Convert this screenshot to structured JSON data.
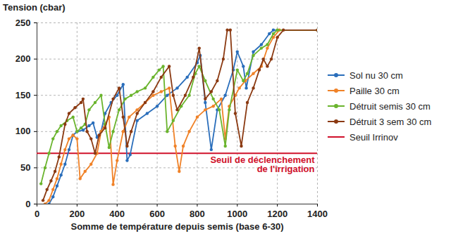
{
  "chart_data": {
    "type": "line",
    "x_label": "Somme de température depuis semis (base 6-30)",
    "y_label": "Tension (cbar)",
    "xlim": [
      0,
      1400
    ],
    "xticks": [
      0,
      200,
      400,
      600,
      800,
      1000,
      1200,
      1400
    ],
    "ylim": [
      0,
      250
    ],
    "yticks": [
      0,
      50,
      100,
      150,
      200,
      250
    ],
    "grid": true,
    "legend": "right",
    "series": [
      {
        "name": "Sol nu 30 cm",
        "color": "#2a6ebb",
        "marker": "circle",
        "x": [
          60,
          80,
          100,
          120,
          140,
          160,
          180,
          200,
          230,
          260,
          280,
          300,
          320,
          340,
          370,
          400,
          430,
          450,
          465,
          500,
          550,
          600,
          650,
          700,
          750,
          800,
          815,
          840,
          870,
          900,
          940,
          980,
          1000,
          1030,
          1045,
          1080,
          1120,
          1160,
          1180,
          1400
        ],
        "values": [
          0,
          10,
          25,
          40,
          55,
          75,
          95,
          100,
          102,
          108,
          112,
          92,
          100,
          125,
          140,
          150,
          165,
          60,
          68,
          115,
          125,
          135,
          150,
          160,
          175,
          195,
          205,
          140,
          75,
          130,
          150,
          185,
          210,
          190,
          160,
          210,
          220,
          235,
          240,
          240
        ]
      },
      {
        "name": "Paille 30 cm",
        "color": "#f08228",
        "marker": "circle",
        "x": [
          40,
          60,
          80,
          100,
          120,
          140,
          160,
          180,
          200,
          215,
          240,
          270,
          300,
          320,
          340,
          360,
          380,
          400,
          430,
          460,
          500,
          540,
          580,
          620,
          660,
          690,
          710,
          730,
          760,
          800,
          840,
          880,
          920,
          940,
          960,
          990,
          1010,
          1040,
          1080,
          1120,
          1150,
          1180,
          1210,
          1400
        ],
        "values": [
          0,
          5,
          20,
          35,
          55,
          75,
          90,
          95,
          90,
          35,
          45,
          55,
          70,
          100,
          110,
          120,
          27,
          60,
          100,
          120,
          130,
          140,
          150,
          155,
          160,
          80,
          45,
          80,
          100,
          120,
          130,
          135,
          145,
          90,
          135,
          150,
          160,
          170,
          180,
          190,
          215,
          230,
          240,
          240
        ]
      },
      {
        "name": "Détruit semis 30 cm",
        "color": "#6ab42d",
        "marker": "circle",
        "x": [
          20,
          40,
          60,
          80,
          100,
          120,
          150,
          180,
          200,
          220,
          240,
          260,
          290,
          320,
          340,
          360,
          380,
          410,
          440,
          470,
          500,
          540,
          580,
          610,
          630,
          650,
          680,
          720,
          760,
          790,
          810,
          840,
          880,
          910,
          940,
          960,
          1000,
          1030,
          1050,
          1080,
          1120,
          1150,
          1180,
          1200,
          1400
        ],
        "values": [
          28,
          50,
          70,
          90,
          100,
          108,
          115,
          120,
          100,
          105,
          110,
          130,
          140,
          150,
          110,
          78,
          100,
          130,
          145,
          150,
          155,
          160,
          175,
          185,
          190,
          100,
          115,
          135,
          150,
          180,
          190,
          170,
          145,
          130,
          80,
          130,
          185,
          170,
          180,
          205,
          215,
          220,
          235,
          240,
          240
        ]
      },
      {
        "name": "Détruit 3 sem 30 cm",
        "color": "#8b3a12",
        "marker": "circle",
        "x": [
          30,
          50,
          70,
          90,
          110,
          140,
          160,
          190,
          220,
          230,
          250,
          270,
          290,
          310,
          340,
          380,
          410,
          430,
          450,
          470,
          500,
          540,
          580,
          620,
          660,
          680,
          700,
          740,
          780,
          810,
          840,
          870,
          900,
          930,
          950,
          965,
          990,
          1020,
          1050,
          1080,
          1110,
          1130,
          1150,
          1170,
          1200,
          1230,
          1400
        ],
        "values": [
          5,
          20,
          32,
          45,
          65,
          110,
          125,
          133,
          140,
          145,
          100,
          90,
          70,
          95,
          105,
          145,
          160,
          120,
          80,
          100,
          125,
          140,
          155,
          175,
          190,
          150,
          130,
          150,
          175,
          215,
          145,
          155,
          170,
          200,
          240,
          240,
          125,
          80,
          140,
          160,
          185,
          200,
          190,
          200,
          230,
          240,
          240
        ]
      }
    ],
    "threshold": {
      "name": "Seuil Irrinov",
      "value": 70,
      "color": "#d0102a",
      "annotation": [
        "Seuil de déclenchement",
        "de l'irrigation"
      ]
    }
  }
}
